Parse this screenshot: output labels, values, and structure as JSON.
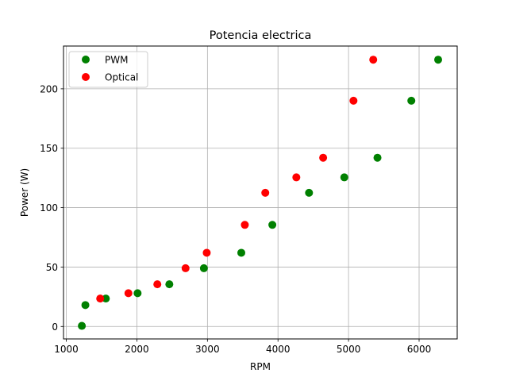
{
  "chart_data": {
    "type": "scatter",
    "title": "Potencia electrica",
    "xlabel": "RPM",
    "ylabel": "Power (W)",
    "xlim": [
      960,
      6540
    ],
    "ylim": [
      -10.5,
      236
    ],
    "xticks": [
      1000,
      2000,
      3000,
      4000,
      5000,
      6000
    ],
    "yticks": [
      0,
      50,
      100,
      150,
      200
    ],
    "grid": true,
    "legend_position": "top-left",
    "series": [
      {
        "name": "PWM",
        "color": "#008000",
        "points": [
          [
            1220,
            0.5
          ],
          [
            1270,
            18
          ],
          [
            1560,
            23.5
          ],
          [
            2010,
            28
          ],
          [
            2460,
            35.5
          ],
          [
            2950,
            49
          ],
          [
            3480,
            62
          ],
          [
            3920,
            85.5
          ],
          [
            4440,
            112.5
          ],
          [
            4940,
            125.5
          ],
          [
            5410,
            142
          ],
          [
            5890,
            190
          ],
          [
            6270,
            224.5
          ]
        ]
      },
      {
        "name": "Optical",
        "color": "#ff0000",
        "points": [
          [
            1480,
            23.5
          ],
          [
            1880,
            28
          ],
          [
            2290,
            35.5
          ],
          [
            2690,
            49
          ],
          [
            2990,
            62
          ],
          [
            3530,
            85.5
          ],
          [
            3820,
            112.5
          ],
          [
            4260,
            125.5
          ],
          [
            4640,
            142
          ],
          [
            5070,
            190
          ],
          [
            5350,
            224.5
          ]
        ]
      }
    ]
  }
}
